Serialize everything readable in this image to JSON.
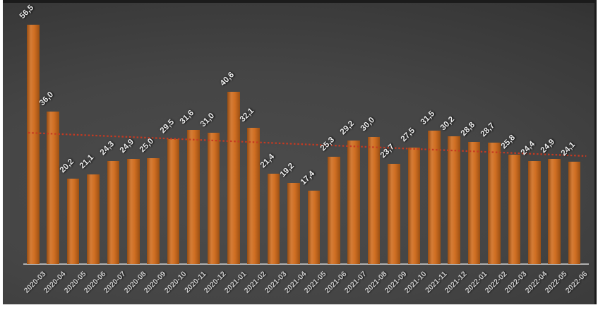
{
  "chart_data": {
    "type": "bar",
    "title": "",
    "xlabel": "",
    "ylabel": "",
    "categories": [
      "2020-03",
      "2020-04",
      "2020-05",
      "2020-06",
      "2020-07",
      "2020-08",
      "2020-09",
      "2020-10",
      "2020-11",
      "2020-12",
      "2021-01",
      "2021-02",
      "2021-03",
      "2021-04",
      "2021-05",
      "2021-06",
      "2021-07",
      "2021-08",
      "2021-09",
      "2021-10",
      "2021-11",
      "2021-12",
      "2022-01",
      "2022-02",
      "2022-03",
      "2022-04",
      "2022-05",
      "2022-06"
    ],
    "values": [
      56.5,
      36.0,
      20.2,
      21.1,
      24.3,
      24.9,
      25.0,
      29.5,
      31.6,
      31.0,
      40.6,
      32.1,
      21.4,
      19.2,
      17.4,
      25.3,
      29.2,
      30.0,
      23.7,
      27.5,
      31.5,
      30.2,
      28.8,
      28.7,
      25.8,
      24.4,
      24.9,
      24.1
    ],
    "value_labels": [
      "56,5",
      "36,0",
      "20,2",
      "21,1",
      "24,3",
      "24,9",
      "25,0",
      "29,5",
      "31,6",
      "31,0",
      "40,6",
      "32,1",
      "21,4",
      "19,2",
      "17,4",
      "25,3",
      "29,2",
      "30,0",
      "23,7",
      "27,5",
      "31,5",
      "30,2",
      "28,8",
      "28,7",
      "25,8",
      "24,4",
      "24,9",
      "24,1"
    ],
    "decimal_separator": ",",
    "ylim": [
      0,
      60
    ],
    "grid": false,
    "legend": "none",
    "y_axis_visible": false,
    "x_labels_rotation_deg": 45,
    "trendline": {
      "type": "linear",
      "style": "dotted",
      "start_value": 31.0,
      "end_value": 25.5,
      "color": "#c43a22"
    },
    "colors": {
      "bar": "#cf6a1a",
      "value_label": "#ececec",
      "axis_label": "#cbcbcb",
      "axis_line": "#bdbdbd",
      "background_center": "#4c4c4c",
      "background_edge": "#272727",
      "frame": "#1b1b1b",
      "page_margin": "#ffffff"
    }
  }
}
